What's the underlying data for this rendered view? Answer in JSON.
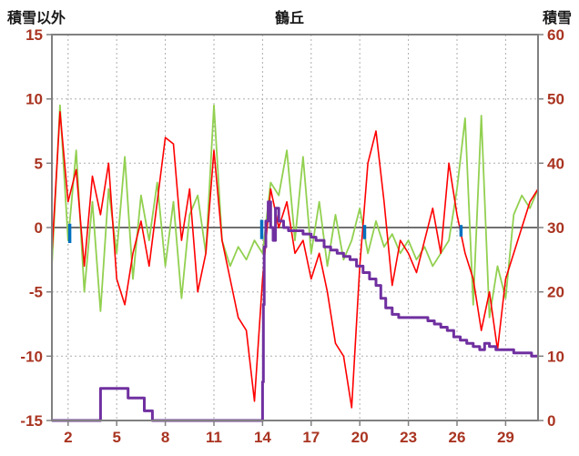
{
  "header": {
    "left_label": "積雪以外",
    "title": "鶴丘",
    "right_label": "積雪"
  },
  "colors": {
    "tick_label": "#A93421",
    "grid": "#ADADAD",
    "frame": "#808080",
    "zero_line": "#707070",
    "background": "#FFFFFF",
    "red_series": "#FF0000",
    "green_series": "#92D050",
    "purple_series": "#7030A0",
    "blue_series": "#0070C0"
  },
  "chart_data": {
    "type": "line",
    "title": "鶴丘",
    "x_axis": {
      "range": [
        1,
        31
      ],
      "ticks": [
        2,
        5,
        8,
        11,
        14,
        17,
        20,
        23,
        26,
        29
      ]
    },
    "left_axis": {
      "label": "積雪以外",
      "range": [
        -15,
        15
      ],
      "ticks": [
        -15,
        -10,
        -5,
        0,
        5,
        10,
        15
      ]
    },
    "right_axis": {
      "label": "積雪",
      "range": [
        0,
        60
      ],
      "ticks": [
        0,
        10,
        20,
        30,
        40,
        50,
        60
      ]
    },
    "grid": {
      "vertical": "dashed",
      "horizontal": "dashed",
      "zero_line": true,
      "legend": "none"
    },
    "series": [
      {
        "name": "green-line",
        "axis": "left",
        "color": "#92D050",
        "width": 1.8,
        "x_start": 1,
        "x_step": 0.5,
        "values": [
          -3,
          9.5,
          -1,
          6,
          -5,
          2,
          -6.5,
          3,
          -2,
          5.5,
          -4,
          2.5,
          -1,
          3.5,
          -3,
          2,
          -5.5,
          1,
          2.5,
          -2,
          9.5,
          -1,
          -3,
          -1.5,
          -2.5,
          -1,
          -2,
          3.5,
          2.5,
          6,
          -1,
          5.5,
          -2,
          2,
          -3,
          1,
          -2.5,
          -1,
          1.5,
          -2,
          0.5,
          -1.5,
          -0.5,
          -2,
          -1,
          -2.5,
          -1.5,
          -3,
          -2,
          -1,
          3,
          8.5,
          -6,
          8.7,
          -7,
          -3,
          -5.5,
          1,
          2.5,
          1.5,
          3
        ]
      },
      {
        "name": "red-line",
        "axis": "left",
        "color": "#FF0000",
        "width": 1.6,
        "x_start": 1,
        "x_step": 0.5,
        "values": [
          -2,
          9,
          2,
          4.5,
          -3,
          4,
          1,
          5,
          -4,
          -6,
          -2,
          0.5,
          -3,
          2,
          7,
          6.5,
          -1,
          3,
          -5,
          -2,
          6,
          -1,
          -4,
          -7,
          -8,
          -13.5,
          -4,
          3,
          0,
          2,
          -2,
          -1,
          -4,
          -2,
          -5,
          -9,
          -10,
          -14,
          -3,
          5,
          7.5,
          2,
          -4.5,
          -1,
          -2,
          -3.5,
          -1,
          1.5,
          -2,
          5,
          1,
          -2,
          -4,
          -8,
          -5,
          -9.5,
          -4,
          -2,
          0,
          2,
          3
        ]
      },
      {
        "name": "blue-marks",
        "axis": "left",
        "color": "#0070C0",
        "width": 3.5,
        "style": "segments",
        "segments": [
          [
            2.1,
            0.3,
            -1.2
          ],
          [
            13.95,
            0.6,
            -0.9
          ],
          [
            20.3,
            0.2,
            -0.9
          ],
          [
            26.25,
            0.2,
            -0.7
          ]
        ]
      },
      {
        "name": "snow-depth-step-line",
        "axis": "right",
        "color": "#7030A0",
        "width": 3,
        "style": "step",
        "points": [
          [
            1,
            0
          ],
          [
            3.9,
            0
          ],
          [
            4,
            5
          ],
          [
            5.6,
            5
          ],
          [
            5.7,
            3.5
          ],
          [
            6.6,
            3.5
          ],
          [
            6.7,
            1.5
          ],
          [
            7.1,
            1.5
          ],
          [
            7.2,
            0
          ],
          [
            13.9,
            0
          ],
          [
            14,
            6
          ],
          [
            14.05,
            18
          ],
          [
            14.1,
            27
          ],
          [
            14.2,
            31
          ],
          [
            14.35,
            34
          ],
          [
            14.5,
            30
          ],
          [
            14.65,
            28
          ],
          [
            14.8,
            33
          ],
          [
            15,
            31
          ],
          [
            15.3,
            30
          ],
          [
            15.6,
            29.5
          ],
          [
            16.5,
            29
          ],
          [
            17,
            28.5
          ],
          [
            17.3,
            28
          ],
          [
            17.8,
            27
          ],
          [
            18.2,
            26.5
          ],
          [
            18.6,
            26
          ],
          [
            19,
            25.5
          ],
          [
            19.4,
            25
          ],
          [
            19.8,
            24
          ],
          [
            20.2,
            23
          ],
          [
            20.6,
            22
          ],
          [
            21,
            21
          ],
          [
            21.3,
            19
          ],
          [
            21.6,
            17.5
          ],
          [
            22,
            16.5
          ],
          [
            22.4,
            16
          ],
          [
            23.6,
            16
          ],
          [
            24.2,
            15.5
          ],
          [
            24.6,
            15
          ],
          [
            25,
            14.5
          ],
          [
            25.4,
            14
          ],
          [
            25.8,
            13
          ],
          [
            26.2,
            12.5
          ],
          [
            26.6,
            12
          ],
          [
            27,
            11.5
          ],
          [
            27.4,
            11
          ],
          [
            27.7,
            12
          ],
          [
            28,
            11.5
          ],
          [
            28.4,
            11
          ],
          [
            29.5,
            10.5
          ],
          [
            30.6,
            10
          ],
          [
            31,
            10
          ]
        ]
      }
    ]
  }
}
